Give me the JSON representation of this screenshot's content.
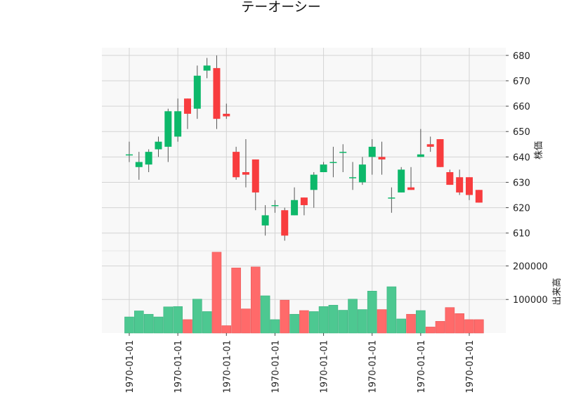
{
  "chart_data": {
    "type": "candlestick",
    "title": "テーオーシー",
    "price_ylabel": "株価",
    "volume_ylabel": "出来高",
    "price_ylim": [
      603,
      683
    ],
    "price_yticks": [
      610,
      620,
      630,
      640,
      650,
      660,
      670,
      680
    ],
    "volume_ylim": [
      0,
      245000
    ],
    "volume_yticks": [
      100000,
      200000
    ],
    "x_tick_labels": [
      "1970-01-01",
      "1970-01-01",
      "1970-01-01",
      "1970-01-01",
      "1970-01-01",
      "1970-01-01",
      "1970-01-01",
      "1970-01-01"
    ],
    "x_tick_every": 5,
    "grid": true,
    "colors": {
      "up": "#0db86a",
      "down": "#f83c3e",
      "volume_up": "#4dc891",
      "volume_down": "#ff6a6a",
      "wick": "#555555",
      "panel_bg": "#f8f8f8",
      "grid": "#d4d4d4"
    },
    "candles": [
      {
        "open": 641,
        "high": 646,
        "low": 638,
        "close": 641,
        "volume": 48000
      },
      {
        "open": 636,
        "high": 642,
        "low": 631,
        "close": 638,
        "volume": 66000
      },
      {
        "open": 637,
        "high": 643,
        "low": 634,
        "close": 642,
        "volume": 56000
      },
      {
        "open": 643,
        "high": 648,
        "low": 640,
        "close": 646,
        "volume": 48000
      },
      {
        "open": 644,
        "high": 659,
        "low": 638,
        "close": 658,
        "volume": 78000
      },
      {
        "open": 648,
        "high": 663,
        "low": 646,
        "close": 658,
        "volume": 79000
      },
      {
        "open": 663,
        "high": 663,
        "low": 651,
        "close": 657,
        "volume": 40000
      },
      {
        "open": 659,
        "high": 676,
        "low": 655,
        "close": 672,
        "volume": 101000
      },
      {
        "open": 674,
        "high": 679,
        "low": 671,
        "close": 676,
        "volume": 64000
      },
      {
        "open": 675,
        "high": 680,
        "low": 651,
        "close": 655,
        "volume": 241000
      },
      {
        "open": 657,
        "high": 661,
        "low": 655,
        "close": 656,
        "volume": 22000
      },
      {
        "open": 642,
        "high": 644,
        "low": 631,
        "close": 632,
        "volume": 194000
      },
      {
        "open": 634,
        "high": 647,
        "low": 628,
        "close": 633,
        "volume": 72000
      },
      {
        "open": 639,
        "high": 639,
        "low": 619,
        "close": 626,
        "volume": 197000
      },
      {
        "open": 613,
        "high": 621,
        "low": 609,
        "close": 617,
        "volume": 111000
      },
      {
        "open": 621,
        "high": 623,
        "low": 618,
        "close": 621,
        "volume": 40000
      },
      {
        "open": 619,
        "high": 620,
        "low": 607,
        "close": 609,
        "volume": 98000
      },
      {
        "open": 617,
        "high": 628,
        "low": 617,
        "close": 623,
        "volume": 56000
      },
      {
        "open": 624,
        "high": 624,
        "low": 617,
        "close": 621,
        "volume": 67000
      },
      {
        "open": 627,
        "high": 634,
        "low": 620,
        "close": 633,
        "volume": 64000
      },
      {
        "open": 634,
        "high": 638,
        "low": 634,
        "close": 637,
        "volume": 79000
      },
      {
        "open": 638,
        "high": 644,
        "low": 632,
        "close": 638,
        "volume": 83000
      },
      {
        "open": 642,
        "high": 645,
        "low": 634,
        "close": 642,
        "volume": 68000
      },
      {
        "open": 632,
        "high": 638,
        "low": 627,
        "close": 632,
        "volume": 101000
      },
      {
        "open": 630,
        "high": 640,
        "low": 629,
        "close": 637,
        "volume": 70000
      },
      {
        "open": 640,
        "high": 647,
        "low": 633,
        "close": 644,
        "volume": 125000
      },
      {
        "open": 640,
        "high": 646,
        "low": 633,
        "close": 639,
        "volume": 70000
      },
      {
        "open": 624,
        "high": 628,
        "low": 618,
        "close": 624,
        "volume": 138000
      },
      {
        "open": 626,
        "high": 636,
        "low": 626,
        "close": 635,
        "volume": 42000
      },
      {
        "open": 628,
        "high": 636,
        "low": 627,
        "close": 627,
        "volume": 56000
      },
      {
        "open": 640,
        "high": 651,
        "low": 640,
        "close": 641,
        "volume": 67000
      },
      {
        "open": 645,
        "high": 648,
        "low": 642,
        "close": 644,
        "volume": 18000
      },
      {
        "open": 647,
        "high": 647,
        "low": 636,
        "close": 636,
        "volume": 35000
      },
      {
        "open": 634,
        "high": 635,
        "low": 629,
        "close": 629,
        "volume": 76000
      },
      {
        "open": 632,
        "high": 635,
        "low": 625,
        "close": 626,
        "volume": 58000
      },
      {
        "open": 632,
        "high": 632,
        "low": 623,
        "close": 625,
        "volume": 40000
      },
      {
        "open": 627,
        "high": 627,
        "low": 622,
        "close": 622,
        "volume": 40000
      }
    ]
  }
}
